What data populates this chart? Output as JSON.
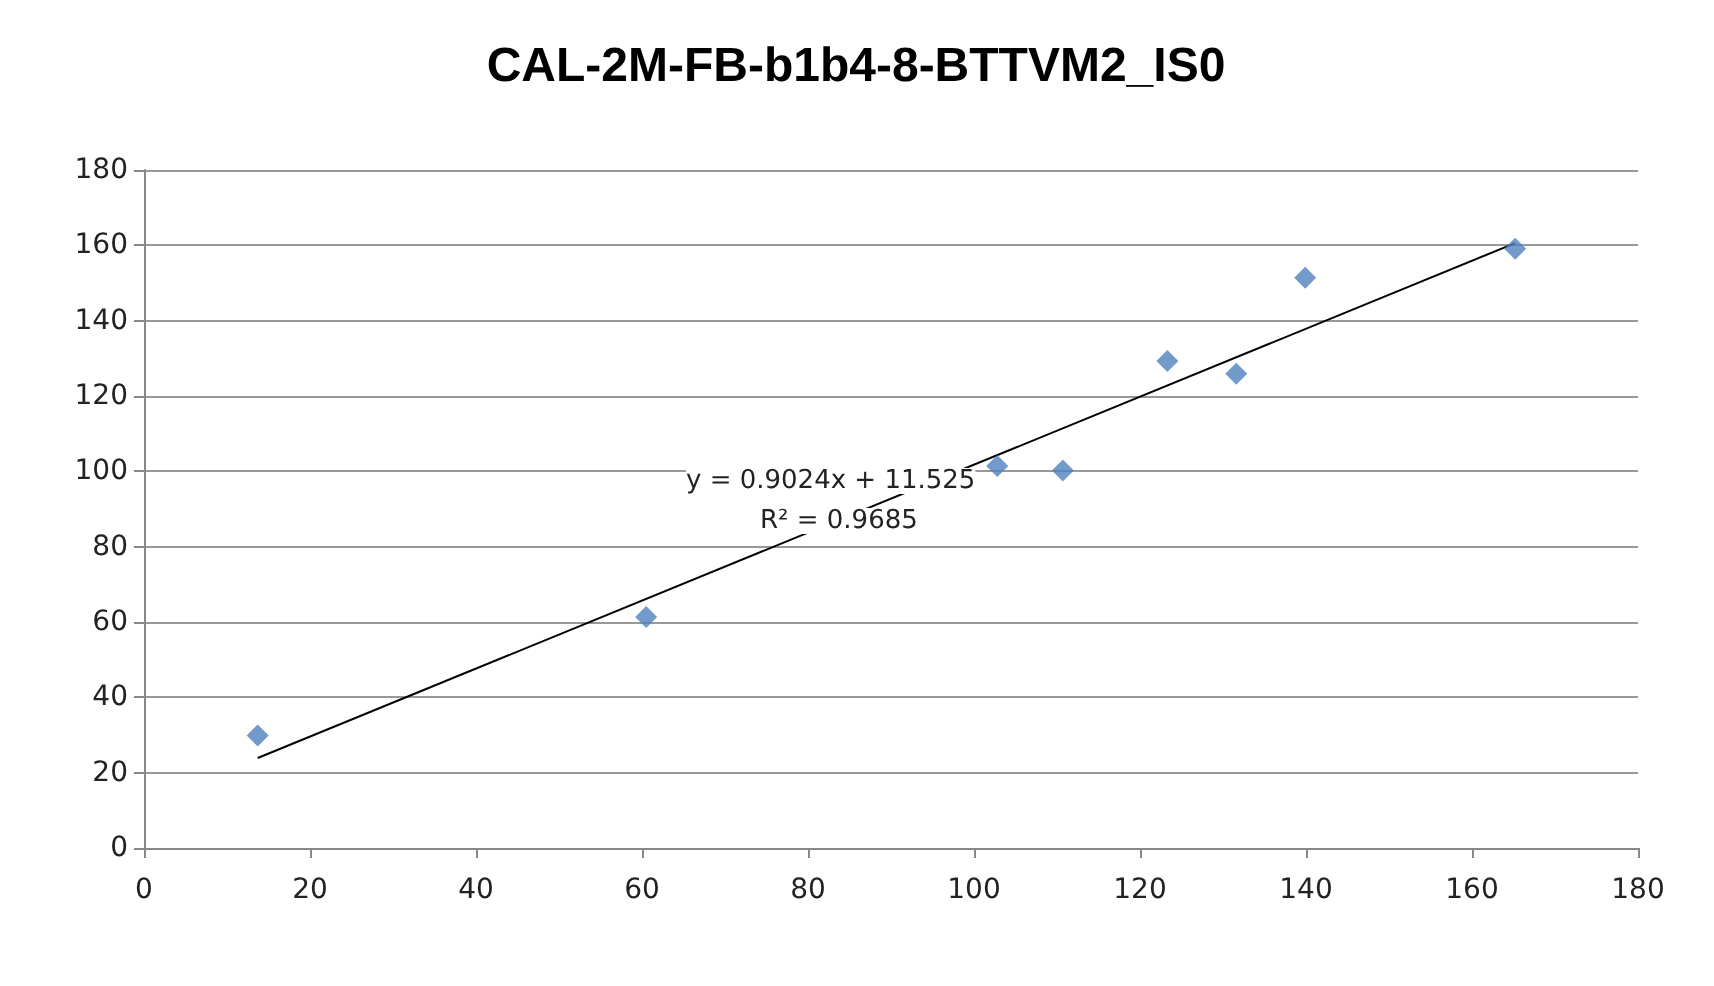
{
  "chart_data": {
    "type": "scatter",
    "title": "CAL-2M-FB-b1b4-8-BTTVM2_IS0",
    "series": [
      {
        "color": "#4f81bd",
        "x": [
          13.7,
          60.5,
          102.8,
          110.7,
          123.3,
          131.6,
          139.9,
          165.2
        ],
        "values": [
          29.9,
          61.3,
          101.4,
          100.2,
          129.3,
          125.9,
          151.4,
          159.1
        ]
      },
      {
        "type": "line",
        "marker": "none",
        "color": "#000000",
        "x": [
          13.7,
          165.2
        ],
        "values": [
          23.9,
          160.6
        ]
      }
    ],
    "xlim": [
      0,
      180
    ],
    "xticks": [
      0,
      20,
      40,
      60,
      80,
      100,
      120,
      140,
      160,
      180
    ],
    "ylim": [
      0,
      180
    ],
    "yticks": [
      0,
      20,
      40,
      60,
      80,
      100,
      120,
      140,
      160,
      180
    ],
    "grid": "y",
    "marker": "diamond",
    "annotations": [
      "y = 0.9024x + 11.525",
      "R² = 0.9685"
    ]
  }
}
